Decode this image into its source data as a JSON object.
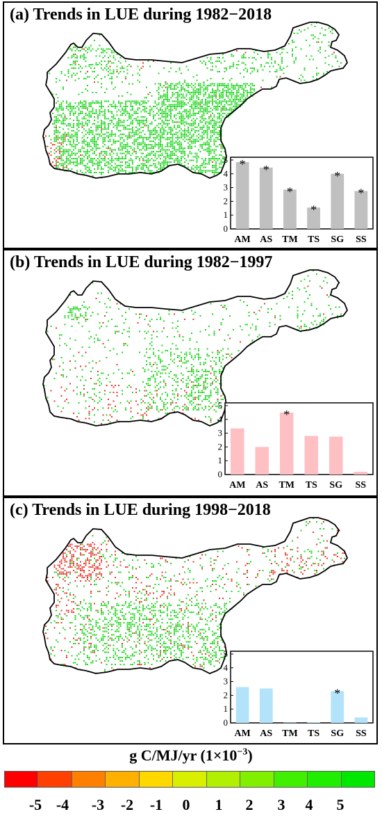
{
  "colors": {
    "trend_pos": "#1fd61f",
    "trend_neg": "#e8352a",
    "bar_a": "#c0c0c0",
    "bar_b": "#ffc0c4",
    "bar_c": "#b3e3fb"
  },
  "colorbar": {
    "title_main": "g C/MJ/yr (1×10",
    "title_exp": "−3",
    "title_close": ")",
    "colors": [
      "#ff0000",
      "#ff4000",
      "#ff8000",
      "#ffb000",
      "#ffd800",
      "#d8f000",
      "#b0f000",
      "#80f000",
      "#40f000",
      "#20ee00",
      "#00e800"
    ],
    "tick_labels": [
      "-5",
      "-4",
      "-3",
      "-2",
      "-1",
      "0",
      "1",
      "2",
      "3",
      "4",
      "5"
    ]
  },
  "chart_data": [
    {
      "type": "bar",
      "title": "(a) Trends in LUE during 1982−2018",
      "categories": [
        "AM",
        "AS",
        "TM",
        "TS",
        "SG",
        "SS"
      ],
      "values": [
        4.85,
        4.45,
        2.85,
        1.55,
        4.0,
        2.75
      ],
      "significant": [
        true,
        true,
        true,
        true,
        true,
        true
      ],
      "yticks": [
        "0",
        "1",
        "2",
        "3",
        "4",
        "5"
      ],
      "ylim": [
        0,
        5.2
      ],
      "significance_marker": "*",
      "grid": false
    },
    {
      "type": "bar",
      "title": "(b) Trends in LUE during 1982−1997",
      "categories": [
        "AM",
        "AS",
        "TM",
        "TS",
        "SG",
        "SS"
      ],
      "values": [
        3.35,
        2.0,
        4.5,
        2.8,
        2.75,
        0.2
      ],
      "significant": [
        false,
        false,
        true,
        false,
        false,
        false
      ],
      "yticks": [
        "0",
        "1",
        "2",
        "3",
        "4",
        "5"
      ],
      "ylim": [
        0,
        5.2
      ],
      "significance_marker": "*",
      "grid": false
    },
    {
      "type": "bar",
      "title": "(c) Trends in LUE during 1998−2018",
      "categories": [
        "AM",
        "AS",
        "TM",
        "TS",
        "SG",
        "SS"
      ],
      "values": [
        2.6,
        2.5,
        0.02,
        0.05,
        2.3,
        0.4
      ],
      "significant": [
        false,
        false,
        false,
        false,
        true,
        false
      ],
      "yticks": [
        "0",
        "1",
        "2",
        "3",
        "4",
        "5"
      ],
      "ylim": [
        0,
        5.2
      ],
      "significance_marker": "*",
      "grid": false
    }
  ]
}
